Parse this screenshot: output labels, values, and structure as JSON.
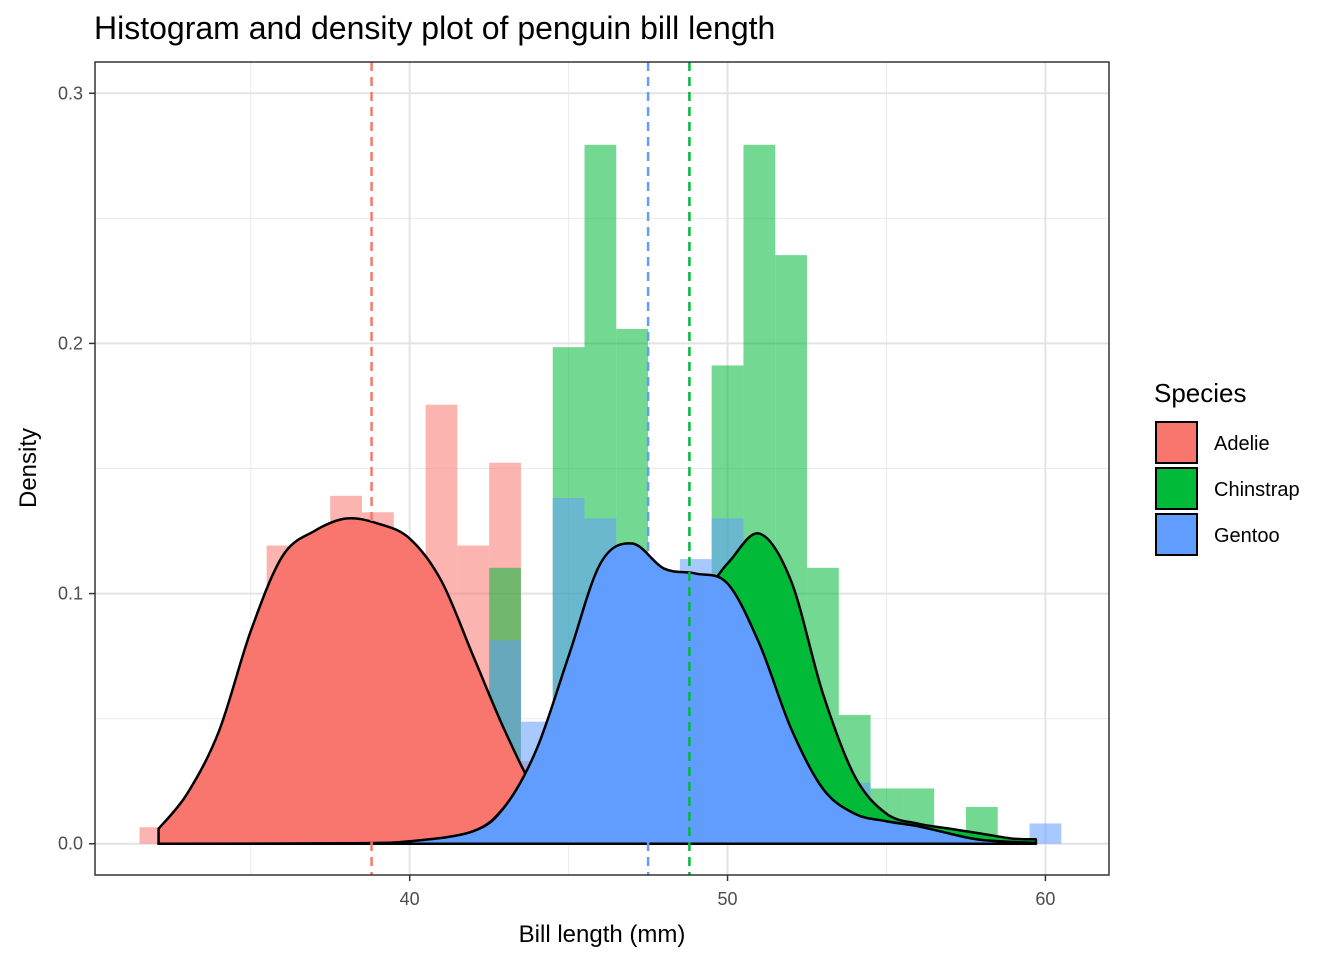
{
  "chart_data": {
    "type": "histogram-density",
    "title": "Histogram and density plot of penguin bill length",
    "xlabel": "Bill length (mm)",
    "ylabel": "Density",
    "xlim": [
      30.1,
      62.0
    ],
    "ylim": [
      -0.0125,
      0.3125
    ],
    "x_ticks": [
      40,
      50,
      60
    ],
    "y_ticks": [
      0.0,
      0.1,
      0.2,
      0.3
    ],
    "y_tick_labels": [
      "0.0",
      "0.1",
      "0.2",
      "0.3"
    ],
    "grid": true,
    "legend": {
      "title": "Species",
      "position": "right"
    },
    "bin_width": 1.0,
    "series": [
      {
        "name": "Adelie",
        "color": "#F8766D",
        "mean": 38.8,
        "histogram": [
          [
            32,
            0.0066
          ],
          [
            33,
            0.0132
          ],
          [
            34,
            0.0265
          ],
          [
            35,
            0.0596
          ],
          [
            36,
            0.1192
          ],
          [
            37,
            0.0993
          ],
          [
            38,
            0.1391
          ],
          [
            39,
            0.1325
          ],
          [
            40,
            0.1126
          ],
          [
            41,
            0.1755
          ],
          [
            42,
            0.1192
          ],
          [
            43,
            0.1523
          ],
          [
            44,
            0.0331
          ],
          [
            45,
            0.0066
          ],
          [
            46,
            0.0066
          ]
        ],
        "density": [
          [
            32.1,
            0.006
          ],
          [
            33,
            0.02
          ],
          [
            34,
            0.045
          ],
          [
            35,
            0.085
          ],
          [
            36,
            0.115
          ],
          [
            37,
            0.125
          ],
          [
            38,
            0.13
          ],
          [
            39,
            0.128
          ],
          [
            40,
            0.122
          ],
          [
            41,
            0.105
          ],
          [
            42,
            0.075
          ],
          [
            43,
            0.045
          ],
          [
            44,
            0.02
          ],
          [
            45,
            0.006
          ],
          [
            46,
            0.002
          ],
          [
            47,
            0.0005
          ],
          [
            48.5,
            0.0
          ]
        ]
      },
      {
        "name": "Chinstrap",
        "color": "#00BA38",
        "mean": 48.8,
        "histogram": [
          [
            40,
            0.0147
          ],
          [
            43,
            0.1103
          ],
          [
            45,
            0.1985
          ],
          [
            46,
            0.2794
          ],
          [
            47,
            0.2058
          ],
          [
            48,
            0.0147
          ],
          [
            49,
            0.1029
          ],
          [
            50,
            0.1912
          ],
          [
            51,
            0.2794
          ],
          [
            52,
            0.2353
          ],
          [
            53,
            0.1103
          ],
          [
            54,
            0.0515
          ],
          [
            55,
            0.0221
          ],
          [
            56,
            0.0221
          ],
          [
            58,
            0.0147
          ]
        ],
        "density": [
          [
            32.1,
            0.0
          ],
          [
            40,
            0.0005
          ],
          [
            42,
            0.005
          ],
          [
            43,
            0.015
          ],
          [
            44,
            0.035
          ],
          [
            45,
            0.065
          ],
          [
            46,
            0.098
          ],
          [
            47,
            0.115
          ],
          [
            48,
            0.108
          ],
          [
            49,
            0.098
          ],
          [
            50,
            0.112
          ],
          [
            51,
            0.124
          ],
          [
            52,
            0.105
          ],
          [
            53,
            0.06
          ],
          [
            54,
            0.027
          ],
          [
            55,
            0.012
          ],
          [
            56,
            0.008
          ],
          [
            57,
            0.006
          ],
          [
            58,
            0.004
          ],
          [
            59,
            0.002
          ],
          [
            59.7,
            0.0018
          ]
        ]
      },
      {
        "name": "Gentoo",
        "color": "#619CFF",
        "mean": 47.5,
        "histogram": [
          [
            41,
            0.0081
          ],
          [
            43,
            0.0813
          ],
          [
            44,
            0.0488
          ],
          [
            45,
            0.1382
          ],
          [
            46,
            0.1301
          ],
          [
            47,
            0.1057
          ],
          [
            48,
            0.0976
          ],
          [
            49,
            0.1138
          ],
          [
            50,
            0.1301
          ],
          [
            51,
            0.1138
          ],
          [
            52,
            0.0325
          ],
          [
            53,
            0.0244
          ],
          [
            54,
            0.0244
          ],
          [
            55,
            0.0081
          ],
          [
            60,
            0.0081
          ]
        ],
        "density": [
          [
            32.1,
            0.0
          ],
          [
            38,
            0.0002
          ],
          [
            40,
            0.001
          ],
          [
            42,
            0.005
          ],
          [
            43,
            0.015
          ],
          [
            44,
            0.038
          ],
          [
            45,
            0.075
          ],
          [
            46,
            0.112
          ],
          [
            47,
            0.12
          ],
          [
            48,
            0.11
          ],
          [
            49,
            0.108
          ],
          [
            50,
            0.104
          ],
          [
            51,
            0.08
          ],
          [
            52,
            0.046
          ],
          [
            53,
            0.022
          ],
          [
            54,
            0.012
          ],
          [
            55,
            0.009
          ],
          [
            56,
            0.007
          ],
          [
            57,
            0.004
          ],
          [
            58,
            0.0015
          ],
          [
            59.7,
            0.0003
          ]
        ]
      }
    ]
  }
}
